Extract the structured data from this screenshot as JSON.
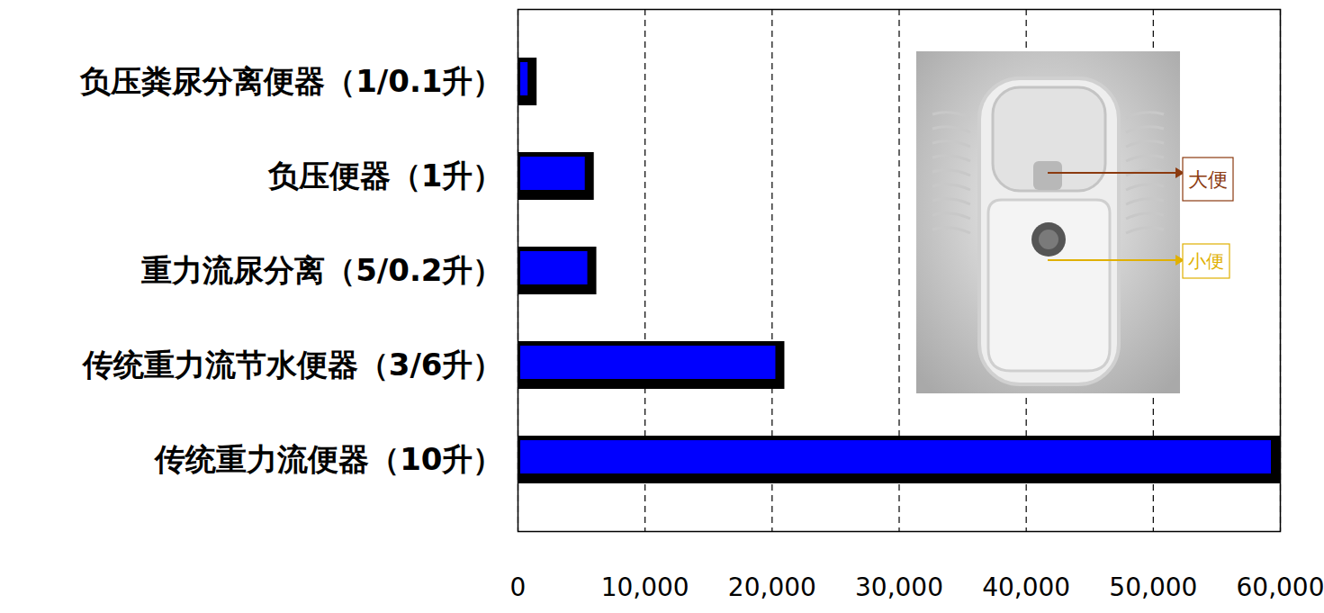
{
  "chart_data": {
    "type": "bar",
    "orientation": "horizontal",
    "categories": [
      "负压粪尿分离便器（1/0.1升）",
      "负压便器（1升）",
      "重力流尿分离（5/0.2升）",
      "传统重力流节水便器（3/6升）",
      "传统重力流便器（10升）"
    ],
    "values": [
      1500,
      6000,
      6200,
      21000,
      60000
    ],
    "color": "#0000ff",
    "xlim": [
      0,
      60000
    ],
    "xticks": [
      0,
      10000,
      20000,
      30000,
      40000,
      50000,
      60000
    ],
    "grid": true,
    "annotations": [
      "大便",
      "小便"
    ]
  }
}
